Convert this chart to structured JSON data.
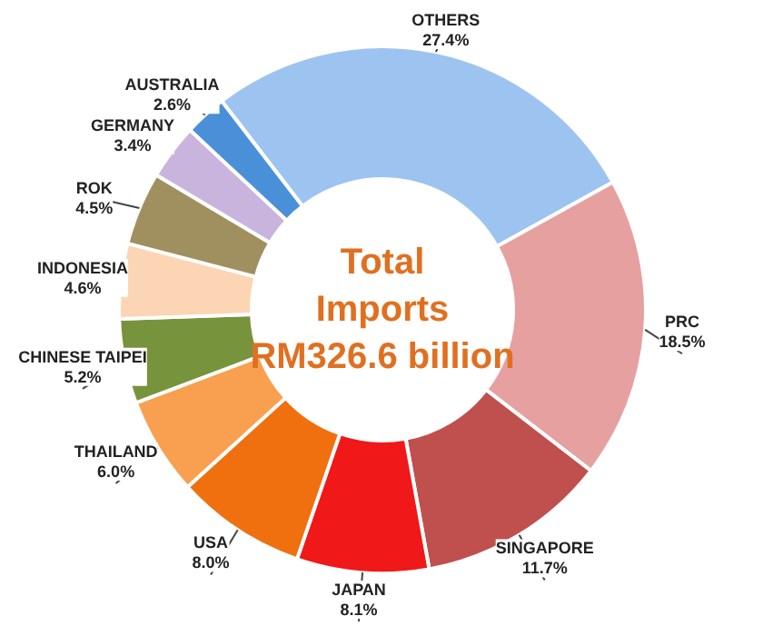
{
  "chart_data": {
    "type": "donut",
    "title": "Total\nImports\nRM326.6 billion",
    "categories": [
      "OTHERS",
      "PRC",
      "SINGAPORE",
      "JAPAN",
      "USA",
      "THAILAND",
      "CHINESE TAIPEI",
      "INDONESIA",
      "ROK",
      "GERMANY",
      "AUSTRALIA"
    ],
    "values": [
      27.4,
      18.5,
      11.7,
      8.1,
      8.0,
      6.0,
      5.2,
      4.6,
      4.5,
      3.4,
      2.6
    ],
    "value_labels": [
      "27.4%",
      "18.5%",
      "11.7%",
      "8.1%",
      "8.0%",
      "6.0%",
      "5.2%",
      "4.6%",
      "4.5%",
      "3.4%",
      "2.6%"
    ],
    "colors": [
      "#9dc3f0",
      "#e6a0a0",
      "#c0504d",
      "#f01818",
      "#f07010",
      "#f8a050",
      "#77933c",
      "#fcd5b4",
      "#a09060",
      "#c8b4dc",
      "#4a90d8"
    ],
    "legend": false
  }
}
